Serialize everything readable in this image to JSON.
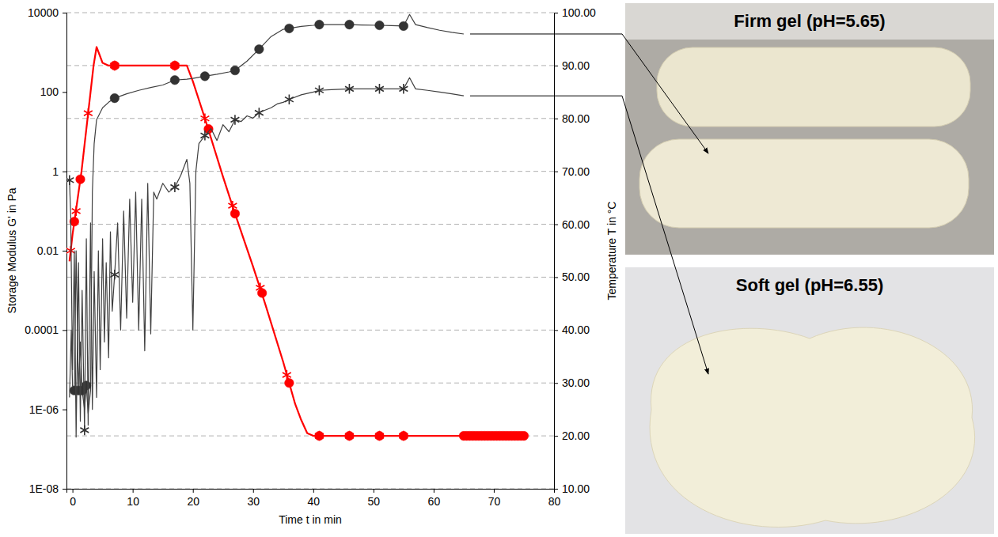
{
  "chart_data": {
    "type": "line",
    "xlabel": "Time t in min",
    "ylabel": "Storage Modulus G' in Pa",
    "y2label": "Temperature T in °C",
    "log": "y",
    "grid": true,
    "xlim": [
      -1,
      80
    ],
    "xticks": [
      0,
      10,
      20,
      30,
      40,
      50,
      60,
      70,
      80
    ],
    "ylim": [
      1e-08,
      10000
    ],
    "yticks": [
      {
        "value": 1e-08,
        "label": "1E-08"
      },
      {
        "value": 1e-06,
        "label": "1E-06"
      },
      0.0001,
      0.01,
      1,
      100,
      10000
    ],
    "y2lim": [
      10,
      100
    ],
    "y2ticks": [
      {
        "value": 10,
        "label": "10.00"
      },
      {
        "value": 20,
        "label": "20.00"
      },
      {
        "value": 30,
        "label": "30.00"
      },
      {
        "value": 40,
        "label": "40.00"
      },
      {
        "value": 50,
        "label": "50.00"
      },
      {
        "value": 60,
        "label": "60.00"
      },
      {
        "value": 70,
        "label": "70.00"
      },
      {
        "value": 80,
        "label": "80.00"
      },
      {
        "value": 90,
        "label": "90.00"
      },
      {
        "value": 100,
        "label": "100.00"
      }
    ],
    "annotations": [
      "Firm gel (pH=5.65)",
      "Soft gel (pH=6.55)"
    ],
    "series": [
      {
        "type": "line",
        "axis": "y2",
        "color": "#ff0000",
        "line_style": "solid",
        "x": [
          -0.5,
          0,
          0.5,
          1,
          1.5,
          2,
          2.5,
          3,
          3.5,
          4,
          4.5,
          5,
          6,
          7,
          10,
          15,
          19,
          20,
          22,
          25,
          27,
          30,
          32,
          35,
          36,
          37,
          38,
          39,
          40,
          45,
          50,
          55,
          60,
          65,
          70,
          75
        ],
        "values": [
          53,
          58,
          62,
          66,
          70,
          75,
          80,
          85,
          90,
          93.5,
          92,
          90.5,
          90,
          90,
          90,
          90,
          90,
          87,
          80,
          69,
          62,
          52,
          45,
          34,
          30,
          26,
          23,
          20.5,
          20,
          20,
          20,
          20,
          20,
          20,
          20,
          20
        ]
      },
      {
        "type": "scatter",
        "axis": "y2",
        "color": "#ff0000",
        "marker": "circle",
        "x": [
          0.3,
          1.3,
          7,
          17,
          22.6,
          27,
          31.5,
          36,
          41,
          46,
          51,
          55,
          65,
          65.5,
          66,
          66.5,
          67,
          67.5,
          68,
          68.5,
          69,
          69.5,
          70,
          70.5,
          71,
          71.5,
          72,
          72.5,
          73,
          73.5,
          74,
          74.5,
          75
        ],
        "values": [
          60.5,
          68.5,
          90,
          90,
          78,
          62,
          47,
          30,
          20,
          20,
          20,
          20,
          20,
          20,
          20,
          20,
          20,
          20,
          20,
          20,
          20,
          20,
          20,
          20,
          20,
          20,
          20,
          20,
          20,
          20,
          20,
          20,
          20
        ]
      },
      {
        "type": "scatter",
        "axis": "y2",
        "color": "#ff0000",
        "marker": "asterisk",
        "x": [
          -0.3,
          0.6,
          2.6,
          7,
          17,
          22,
          26.6,
          31.2,
          35.6,
          41,
          46,
          51,
          55
        ],
        "values": [
          55,
          62.5,
          81,
          90,
          90,
          80,
          63.5,
          48,
          31.5,
          20,
          20,
          20,
          20
        ]
      },
      {
        "type": "line",
        "color": "#404040",
        "line_style": "solid",
        "x": [
          -0.5,
          -0.2,
          0,
          0.3,
          0.6,
          1,
          1.3,
          1.6,
          2,
          2.3,
          2.6,
          3,
          3.3,
          3.6,
          4,
          5,
          6,
          7,
          9,
          11,
          13,
          15,
          17,
          19,
          20,
          22,
          24,
          26,
          27,
          29,
          31,
          33,
          35,
          36,
          38,
          40,
          41,
          43,
          46,
          48,
          51,
          53,
          55,
          56,
          57,
          59,
          61,
          63,
          65
        ],
        "values": [
          2e-06,
          0.0001,
          4e-06,
          3e-06,
          0.01,
          3e-06,
          5e-05,
          3e-06,
          1e-06,
          4e-06,
          8e-07,
          3e-06,
          0.3,
          5,
          20,
          40,
          55,
          70,
          90,
          110,
          130,
          150,
          200,
          210,
          220,
          250,
          280,
          320,
          350,
          600,
          1200,
          2500,
          3800,
          4000,
          4500,
          4800,
          5000,
          5000,
          5000,
          4900,
          4800,
          4700,
          4600,
          9000,
          5000,
          4200,
          3600,
          3200,
          2900
        ]
      },
      {
        "type": "scatter",
        "color": "#333333",
        "marker": "circle",
        "x": [
          0.3,
          1,
          1.6,
          2.3,
          7,
          17,
          22,
          27,
          31,
          36,
          41,
          46,
          51,
          55
        ],
        "values": [
          3e-06,
          3e-06,
          3e-06,
          4e-06,
          70,
          200,
          250,
          350,
          1200,
          4000,
          5000,
          5000,
          4800,
          4600
        ]
      },
      {
        "type": "line",
        "color": "#404040",
        "line_style": "solid",
        "x": [
          -0.5,
          -0.3,
          0,
          0.3,
          0.6,
          1,
          1.3,
          1.6,
          2,
          2.3,
          2.6,
          3,
          3.3,
          3.6,
          4,
          4.3,
          4.6,
          5,
          5.3,
          5.6,
          6,
          6.3,
          6.6,
          7,
          7.5,
          8,
          8.5,
          9,
          9.5,
          10,
          10.5,
          11,
          11.5,
          12,
          12.5,
          13,
          13.5,
          14,
          15,
          16,
          17,
          18,
          19,
          19.5,
          20,
          20.5,
          21,
          22,
          23,
          24,
          25,
          26,
          27,
          28,
          29,
          30,
          31,
          32,
          33,
          34,
          35,
          36,
          38,
          40,
          41,
          43,
          46,
          48,
          51,
          53,
          55,
          56,
          57,
          59,
          61,
          63,
          65
        ],
        "values": [
          0.6,
          0.08,
          1e-05,
          0.01,
          2e-07,
          0.005,
          5e-07,
          0.001,
          3e-07,
          0.02,
          4e-07,
          0.05,
          1e-06,
          0.003,
          2e-06,
          0.01,
          1e-05,
          0.02,
          5e-05,
          0.005,
          2e-05,
          0.03,
          0.0003,
          0.0025,
          0.05,
          0.0001,
          0.1,
          0.0002,
          0.2,
          0.0005,
          0.3,
          0.0001,
          0.2,
          3e-05,
          0.5,
          8e-05,
          0.3,
          0.2,
          0.5,
          0.3,
          0.4,
          0.8,
          2,
          0.5,
          0.0001,
          1,
          5,
          8,
          12,
          6,
          15,
          10,
          20,
          18,
          25,
          22,
          30,
          35,
          40,
          50,
          55,
          65,
          85,
          100,
          110,
          115,
          120,
          120,
          120,
          120,
          120,
          230,
          120,
          110,
          100,
          90,
          80
        ]
      },
      {
        "type": "scatter",
        "color": "#333333",
        "marker": "asterisk",
        "x": [
          -0.5,
          2,
          7,
          17,
          22,
          27,
          31,
          36,
          41,
          46,
          51,
          55
        ],
        "values": [
          0.6,
          3e-07,
          0.0025,
          0.4,
          8,
          20,
          30,
          65,
          110,
          120,
          120,
          120
        ]
      }
    ]
  }
}
